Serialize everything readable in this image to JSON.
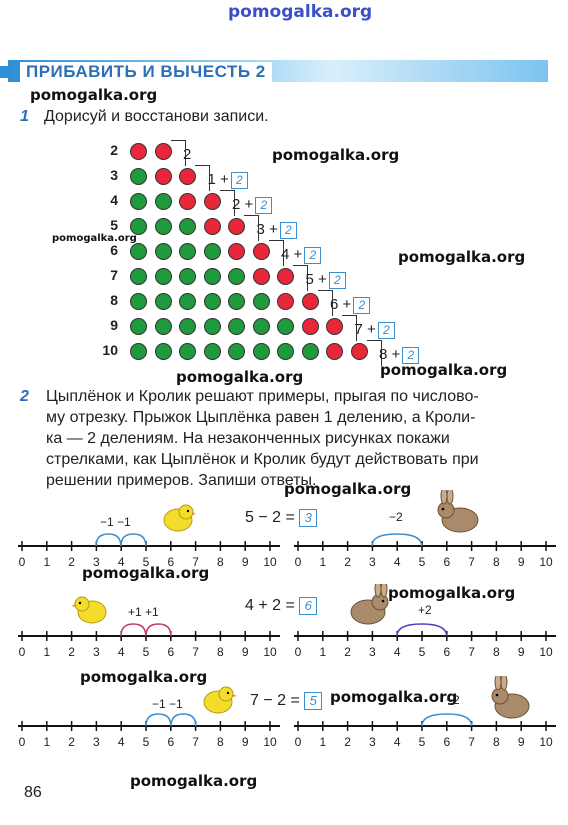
{
  "watermark": "pomogalka.org",
  "header": {
    "title": "ПРИБАВИТЬ И ВЫЧЕСТЬ 2"
  },
  "task1": {
    "number": "1",
    "text": "Дорисуй и восстанови записи.",
    "rows": [
      {
        "label": "2",
        "green": 0,
        "red": 2,
        "expr": "2",
        "answer": ""
      },
      {
        "label": "3",
        "green": 1,
        "red": 2,
        "expr": "1 +",
        "answer": "2"
      },
      {
        "label": "4",
        "green": 2,
        "red": 2,
        "expr": "2 +",
        "answer": "2"
      },
      {
        "label": "5",
        "green": 3,
        "red": 2,
        "expr": "3 +",
        "answer": "2"
      },
      {
        "label": "6",
        "green": 4,
        "red": 2,
        "expr": "4 +",
        "answer": "2"
      },
      {
        "label": "7",
        "green": 5,
        "red": 2,
        "expr": "5 +",
        "answer": "2"
      },
      {
        "label": "8",
        "green": 6,
        "red": 2,
        "expr": "6 +",
        "answer": "2"
      },
      {
        "label": "9",
        "green": 7,
        "red": 2,
        "expr": "7 +",
        "answer": "2"
      },
      {
        "label": "10",
        "green": 8,
        "red": 2,
        "expr": "8 +",
        "answer": "2"
      }
    ]
  },
  "task2": {
    "number": "2",
    "lines": [
      "Цыплёнок и Кролик решают примеры, прыгая по числово-",
      "му отрезку. Прыжок Цыплёнка равен 1 делению, а Кроли-",
      "ка — 2 делениям. На незаконченных рисунках покажи",
      "стрелками, как Цыплёнок и Кролик будут действовать при",
      "решении примеров. Запиши ответы."
    ],
    "ticks": [
      "0",
      "1",
      "2",
      "3",
      "4",
      "5",
      "6",
      "7",
      "8",
      "9",
      "10"
    ],
    "examples": [
      {
        "expr": "5 − 2 =",
        "answer": "3",
        "chick_label": "−1 −1",
        "rabbit_label": "−2"
      },
      {
        "expr": "4 + 2 =",
        "answer": "6",
        "chick_label": "+1 +1",
        "rabbit_label": "+2"
      },
      {
        "expr": "7 − 2 =",
        "answer": "5",
        "chick_label": "−1 −1",
        "rabbit_label": "−2"
      }
    ]
  },
  "colors": {
    "accent": "#2c6fb8",
    "green": "#1f9a3c",
    "red": "#e8283a",
    "answer": "#3a8fd0"
  },
  "page_number": "86"
}
